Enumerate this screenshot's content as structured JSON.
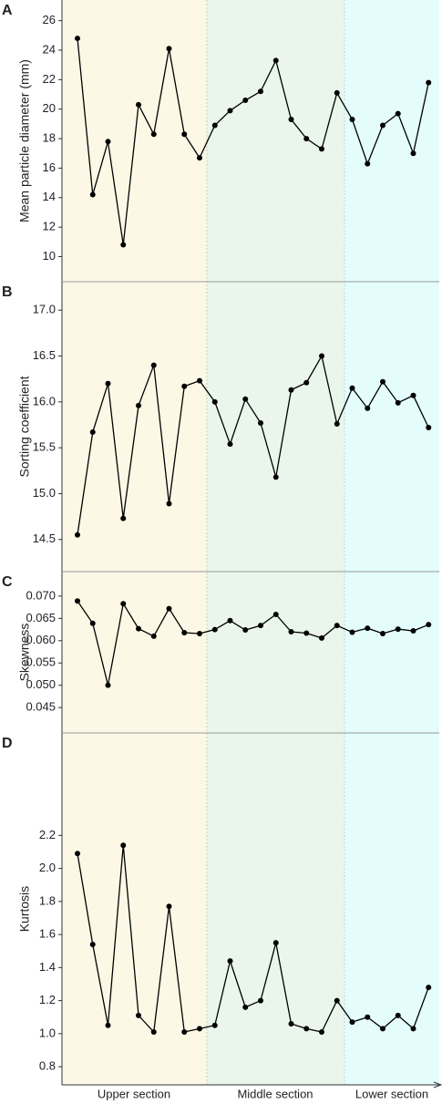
{
  "chart_data": [
    {
      "type": "line",
      "panel_label": "A",
      "y_label": "Mean particle diameter (mm)",
      "color": "#000000",
      "categories": [
        null,
        null,
        null,
        null,
        null,
        null,
        null,
        null,
        null,
        null,
        null,
        null,
        null,
        null,
        null,
        null,
        null,
        null,
        null,
        null,
        null,
        null,
        null,
        null
      ],
      "values": [
        24.8,
        14.2,
        17.8,
        10.8,
        20.3,
        18.3,
        24.1,
        18.3,
        16.7,
        18.9,
        19.9,
        20.6,
        21.2,
        23.3,
        19.3,
        18.0,
        17.3,
        21.1,
        19.3,
        16.3,
        18.9,
        19.7,
        17.0,
        21.8
      ],
      "ylim": [
        8.3,
        27.4
      ],
      "yticks": [
        10,
        12,
        14,
        16,
        18,
        20,
        22,
        24,
        26
      ]
    },
    {
      "type": "line",
      "panel_label": "B",
      "y_label": "Sorting coefficient",
      "color": "#000000",
      "categories": [
        null,
        null,
        null,
        null,
        null,
        null,
        null,
        null,
        null,
        null,
        null,
        null,
        null,
        null,
        null,
        null,
        null,
        null,
        null,
        null,
        null,
        null,
        null,
        null
      ],
      "values": [
        14.55,
        15.67,
        16.2,
        14.73,
        15.96,
        16.4,
        14.89,
        16.17,
        16.23,
        16.0,
        15.54,
        16.03,
        15.77,
        15.18,
        16.13,
        16.21,
        16.5,
        15.76,
        16.15,
        15.93,
        16.22,
        15.99,
        16.07,
        15.72
      ],
      "ylim": [
        14.15,
        17.31
      ],
      "yticks": [
        14.5,
        {
          "value": 15,
          "label": "15.0"
        },
        15.5,
        {
          "value": 16,
          "label": "16.0"
        },
        16.5,
        {
          "value": 17,
          "label": "17.0"
        }
      ]
    },
    {
      "type": "line",
      "panel_label": "C",
      "y_label": "Skewness",
      "color": "#000000",
      "categories": [
        null,
        null,
        null,
        null,
        null,
        null,
        null,
        null,
        null,
        null,
        null,
        null,
        null,
        null,
        null,
        null,
        null,
        null,
        null,
        null,
        null,
        null,
        null,
        null
      ],
      "values": [
        0.0689,
        0.0639,
        0.05,
        0.0683,
        0.0627,
        0.061,
        0.0672,
        0.0618,
        0.0616,
        0.0625,
        0.0645,
        0.0624,
        0.0634,
        0.0659,
        0.062,
        0.0617,
        0.0606,
        0.0634,
        0.0619,
        0.0628,
        0.0616,
        0.0626,
        0.0622,
        0.0636
      ],
      "ylim": [
        0.0393,
        0.0755
      ],
      "yticks": [
        0.045,
        {
          "value": 0.05,
          "label": "0.050"
        },
        0.055,
        {
          "value": 0.06,
          "label": "0.060"
        },
        0.065,
        {
          "value": 0.07,
          "label": "0.070"
        }
      ]
    },
    {
      "type": "line",
      "panel_label": "D",
      "y_label": "Kurtosis",
      "color": "#000000",
      "categories": [
        null,
        null,
        null,
        null,
        null,
        null,
        null,
        null,
        null,
        null,
        null,
        null,
        null,
        null,
        null,
        null,
        null,
        null,
        null,
        null,
        null,
        null,
        null,
        null
      ],
      "values": [
        2.09,
        1.54,
        1.05,
        2.14,
        1.11,
        1.01,
        1.77,
        1.01,
        1.03,
        1.05,
        1.44,
        1.16,
        1.2,
        1.55,
        1.06,
        1.03,
        1.01,
        1.2,
        1.07,
        1.1,
        1.03,
        1.11,
        1.03,
        1.28
      ],
      "ylim": [
        0.69,
        2.82
      ],
      "yticks": [
        0.8,
        {
          "value": 1,
          "label": "1.0"
        },
        1.2,
        1.4,
        1.6,
        1.8,
        {
          "value": 2,
          "label": "2.0"
        },
        2.2
      ]
    }
  ],
  "sections": [
    "Upper section",
    "Middle section",
    "Lower section"
  ]
}
